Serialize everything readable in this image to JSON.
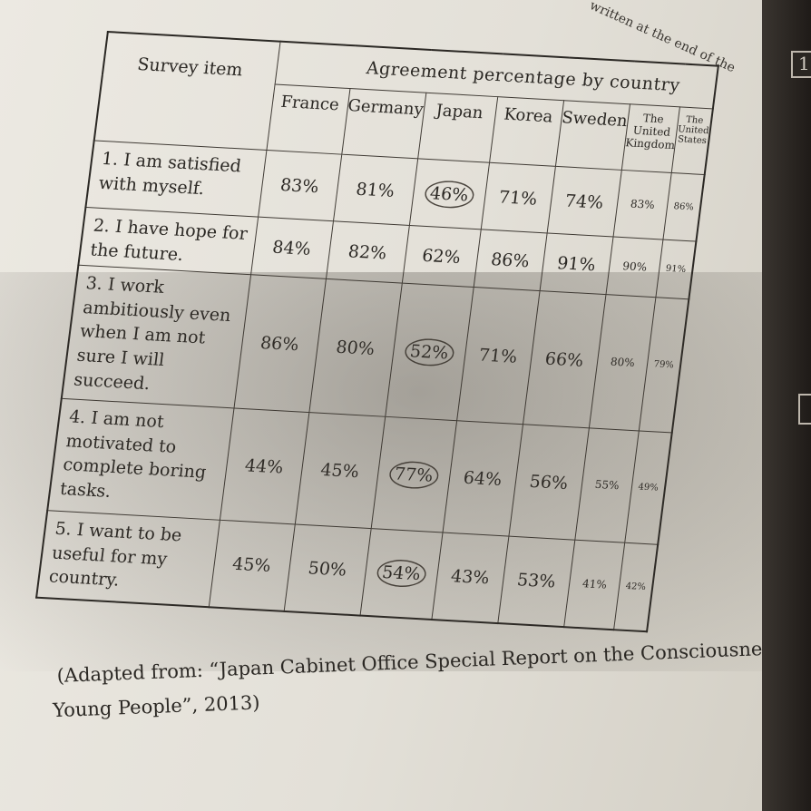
{
  "top_note": "written at the end of the",
  "edge_box_label": "1",
  "table": {
    "header_item": "Survey item",
    "header_group": "Agreement percentage by country",
    "countries": [
      "France",
      "Germany",
      "Japan",
      "Korea",
      "Sweden",
      "The United Kingdom",
      "The United States"
    ],
    "rows": [
      {
        "item": "1. I am satisfied with myself.",
        "values": [
          "83%",
          "81%",
          "46%",
          "71%",
          "74%",
          "83%",
          "86%"
        ]
      },
      {
        "item": "2. I have hope for the future.",
        "values": [
          "84%",
          "82%",
          "62%",
          "86%",
          "91%",
          "90%",
          "91%"
        ]
      },
      {
        "item": "3. I work ambitiously even when I am not sure I will succeed.",
        "values": [
          "86%",
          "80%",
          "52%",
          "71%",
          "66%",
          "80%",
          "79%"
        ]
      },
      {
        "item": "4. I am not motivated to complete boring tasks.",
        "values": [
          "44%",
          "45%",
          "77%",
          "64%",
          "56%",
          "55%",
          "49%"
        ]
      },
      {
        "item": "5. I want to be useful for my country.",
        "values": [
          "45%",
          "50%",
          "54%",
          "43%",
          "53%",
          "41%",
          "42%"
        ]
      }
    ]
  },
  "caption": {
    "line1": "(Adapted from: “Japan Cabinet Office Special Report on the Consciousness of",
    "line2": "Young People”, 2013)"
  },
  "colors": {
    "paper": "#e8e5de",
    "ink": "#2b2824",
    "page_edge": "#1f1b18"
  }
}
